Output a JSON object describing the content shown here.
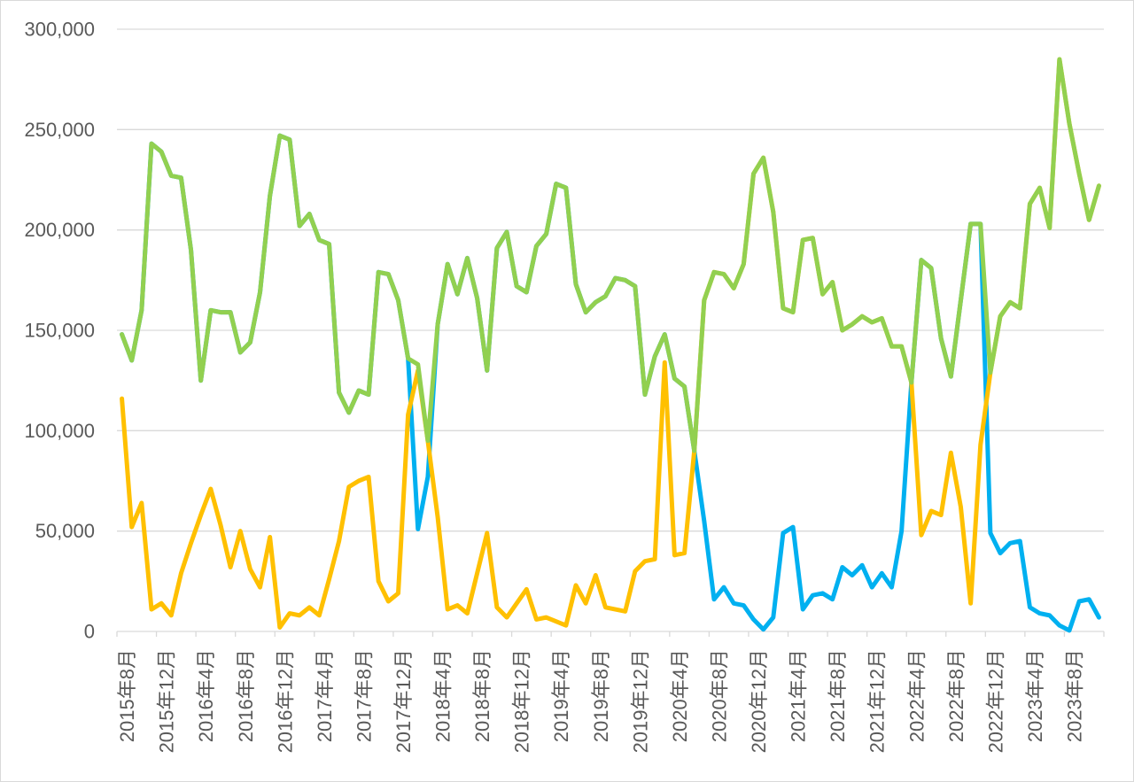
{
  "chart_data": {
    "type": "line",
    "categories": [
      "2015年8月",
      "",
      "",
      "",
      "2015年12月",
      "",
      "",
      "",
      "2016年4月",
      "",
      "",
      "",
      "2016年8月",
      "",
      "",
      "",
      "2016年12月",
      "",
      "",
      "",
      "2017年4月",
      "",
      "",
      "",
      "2017年8月",
      "",
      "",
      "",
      "2017年12月",
      "",
      "",
      "",
      "2018年4月",
      "",
      "",
      "",
      "2018年8月",
      "",
      "",
      "",
      "2018年12月",
      "",
      "",
      "",
      "2019年4月",
      "",
      "",
      "",
      "2019年8月",
      "",
      "",
      "",
      "2019年12月",
      "",
      "",
      "",
      "2020年4月",
      "",
      "",
      "",
      "2020年8月",
      "",
      "",
      "",
      "2020年12月",
      "",
      "",
      "",
      "2021年4月",
      "",
      "",
      "",
      "2021年8月",
      "",
      "",
      "",
      "2021年12月",
      "",
      "",
      "",
      "2022年4月",
      "",
      "",
      "",
      "2022年8月",
      "",
      "",
      "",
      "2022年12月",
      "",
      "",
      "",
      "2023年4月",
      "",
      "",
      "",
      "2023年8月",
      "",
      "",
      ""
    ],
    "series": [
      {
        "color": "#00B0F0",
        "values": [
          148000,
          135000,
          160000,
          243000,
          239000,
          227000,
          226000,
          190000,
          125000,
          160000,
          159000,
          159000,
          139000,
          144000,
          169000,
          217000,
          247000,
          245000,
          202000,
          208000,
          195000,
          193000,
          119000,
          109000,
          120000,
          118000,
          179000,
          178000,
          165000,
          136000,
          51000,
          77000,
          153000,
          183000,
          168000,
          186000,
          166000,
          130000,
          191000,
          199000,
          172000,
          169000,
          192000,
          198000,
          223000,
          221000,
          173000,
          159000,
          164000,
          167000,
          176000,
          175000,
          172000,
          118000,
          137000,
          148000,
          126000,
          122000,
          90000,
          55000,
          16000,
          22000,
          14000,
          13000,
          6000,
          1000,
          7000,
          49000,
          52000,
          11000,
          18000,
          19000,
          16000,
          32000,
          28000,
          33000,
          22000,
          29000,
          22000,
          50000,
          124000,
          185000,
          181000,
          146000,
          127000,
          165000,
          203000,
          203000,
          49000,
          39000,
          44000,
          45000,
          12000,
          9000,
          8000,
          3000,
          500,
          15000,
          16000,
          7000
        ]
      },
      {
        "color": "#FFC000",
        "values": [
          116000,
          52000,
          64000,
          11000,
          14000,
          8000,
          29000,
          44000,
          58000,
          71000,
          53000,
          32000,
          50000,
          31000,
          22000,
          47000,
          2000,
          9000,
          8000,
          12000,
          8000,
          26000,
          45000,
          72000,
          75000,
          77000,
          25000,
          15000,
          19000,
          108000,
          130000,
          95000,
          57000,
          11000,
          13000,
          9000,
          29000,
          49000,
          12000,
          7000,
          14000,
          21000,
          6000,
          7000,
          5000,
          3000,
          23000,
          14000,
          28000,
          12000,
          11000,
          10000,
          30000,
          35000,
          36000,
          134000,
          38000,
          39000,
          90000,
          165000,
          179000,
          178000,
          171000,
          183000,
          228000,
          236000,
          209000,
          161000,
          159000,
          195000,
          196000,
          168000,
          174000,
          150000,
          153000,
          157000,
          154000,
          156000,
          142000,
          142000,
          124000,
          48000,
          60000,
          58000,
          89000,
          62000,
          14000,
          93000,
          129000,
          157000,
          164000,
          161000,
          213000,
          221000,
          201000,
          285000,
          253000,
          228000,
          205000,
          222000
        ]
      },
      {
        "color": "#92D050",
        "values": [
          148000,
          135000,
          160000,
          243000,
          239000,
          227000,
          226000,
          190000,
          125000,
          160000,
          159000,
          159000,
          139000,
          144000,
          169000,
          217000,
          247000,
          245000,
          202000,
          208000,
          195000,
          193000,
          119000,
          109000,
          120000,
          118000,
          179000,
          178000,
          165000,
          136000,
          133000,
          95000,
          153000,
          183000,
          168000,
          186000,
          166000,
          130000,
          191000,
          199000,
          172000,
          169000,
          192000,
          198000,
          223000,
          221000,
          173000,
          159000,
          164000,
          167000,
          176000,
          175000,
          172000,
          118000,
          137000,
          148000,
          126000,
          122000,
          90000,
          165000,
          179000,
          178000,
          171000,
          183000,
          228000,
          236000,
          209000,
          161000,
          159000,
          195000,
          196000,
          168000,
          174000,
          150000,
          153000,
          157000,
          154000,
          156000,
          142000,
          142000,
          124000,
          185000,
          181000,
          146000,
          127000,
          165000,
          203000,
          203000,
          129000,
          157000,
          164000,
          161000,
          213000,
          221000,
          201000,
          285000,
          253000,
          228000,
          205000,
          222000
        ]
      }
    ],
    "ylim": [
      0,
      300000
    ],
    "yticks": [
      0,
      50000,
      100000,
      150000,
      200000,
      250000,
      300000
    ],
    "ytick_labels": [
      "0",
      "50,000",
      "100,000",
      "150,000",
      "200,000",
      "250,000",
      "300,000"
    ],
    "grid": {
      "horizontal": true,
      "vertical": false
    },
    "legend": false,
    "gridline_color": "#D9D9D9",
    "axis_label_color": "#595959",
    "border_color": "#D9D9D9"
  }
}
